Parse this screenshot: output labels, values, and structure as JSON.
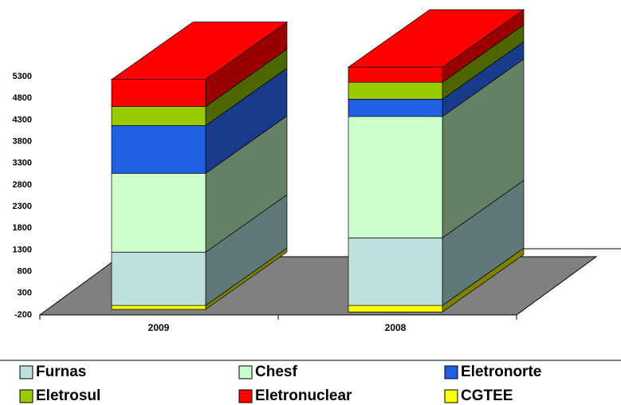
{
  "chart_data": {
    "type": "bar3d_stacked",
    "categories": [
      "2009",
      "2008"
    ],
    "series": [
      {
        "name": "Furnas",
        "color": "#c0e0e0",
        "side": "#5f7878",
        "values": [
          1230,
          1560
        ]
      },
      {
        "name": "Chesf",
        "color": "#ccffcc",
        "side": "#668066",
        "values": [
          1820,
          2800
        ]
      },
      {
        "name": "Eletronorte",
        "color": "#2060e0",
        "side": "#1a3a8c",
        "values": [
          1100,
          400
        ]
      },
      {
        "name": "Eletrosul",
        "color": "#99cc00",
        "side": "#4d6600",
        "values": [
          440,
          390
        ]
      },
      {
        "name": "Eletronuclear",
        "color": "#ff0000",
        "side": "#990000",
        "values": [
          625,
          350
        ]
      },
      {
        "name": "CGTEE",
        "color": "#ffff00",
        "side": "#808000",
        "values": [
          -90,
          -150
        ]
      }
    ],
    "ylim": [
      -200,
      5300
    ],
    "yticks": [
      -200,
      300,
      800,
      1300,
      1800,
      2300,
      2800,
      3300,
      3800,
      4300,
      4800,
      5300
    ]
  }
}
